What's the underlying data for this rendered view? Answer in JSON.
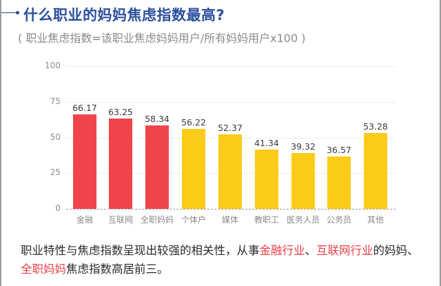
{
  "header": {
    "title": "什么职业的妈妈焦虑指数最高?",
    "subtitle": "( 职业焦虑指数=该职业焦虑妈妈用户/所有妈妈用户x100 )"
  },
  "colors": {
    "title": "#2b4f9e",
    "highlight_bar": "#f0444b",
    "normal_bar": "#fdcb1a",
    "highlight_text": "#e8404a"
  },
  "chart_data": {
    "type": "bar",
    "title": "什么职业的妈妈焦虑指数最高?",
    "subtitle": "( 职业焦虑指数=该职业焦虑妈妈用户/所有妈妈用户x100 )",
    "categories": [
      "金融",
      "互联网",
      "全职妈妈",
      "个体户",
      "媒体",
      "教职工",
      "医务人员",
      "公务员",
      "其他"
    ],
    "values": [
      66.17,
      63.25,
      58.34,
      56.22,
      52.37,
      41.34,
      39.32,
      36.57,
      53.28
    ],
    "value_labels": [
      "66.17",
      "63.25",
      "58.34",
      "56.22",
      "52.37",
      "41.34",
      "39.32",
      "36.57",
      "53.28"
    ],
    "bar_colors": [
      "#f0444b",
      "#f0444b",
      "#f0444b",
      "#fdcb1a",
      "#fdcb1a",
      "#fdcb1a",
      "#fdcb1a",
      "#fdcb1a",
      "#fdcb1a"
    ],
    "xlabel": "",
    "ylabel": "",
    "ylim": [
      0,
      100
    ],
    "yticks": [
      "0",
      "25",
      "50",
      "75",
      "100"
    ],
    "grid": true,
    "legend": null
  },
  "summary": {
    "part1": "职业特性与焦虑指数呈现出较强的相关性，从事",
    "hl1": "金融行业",
    "sep1": "、",
    "hl2": "互联网行业",
    "part2": "的妈妈、",
    "hl3": "全职妈妈",
    "part3": "焦虑指数高居前三。"
  }
}
